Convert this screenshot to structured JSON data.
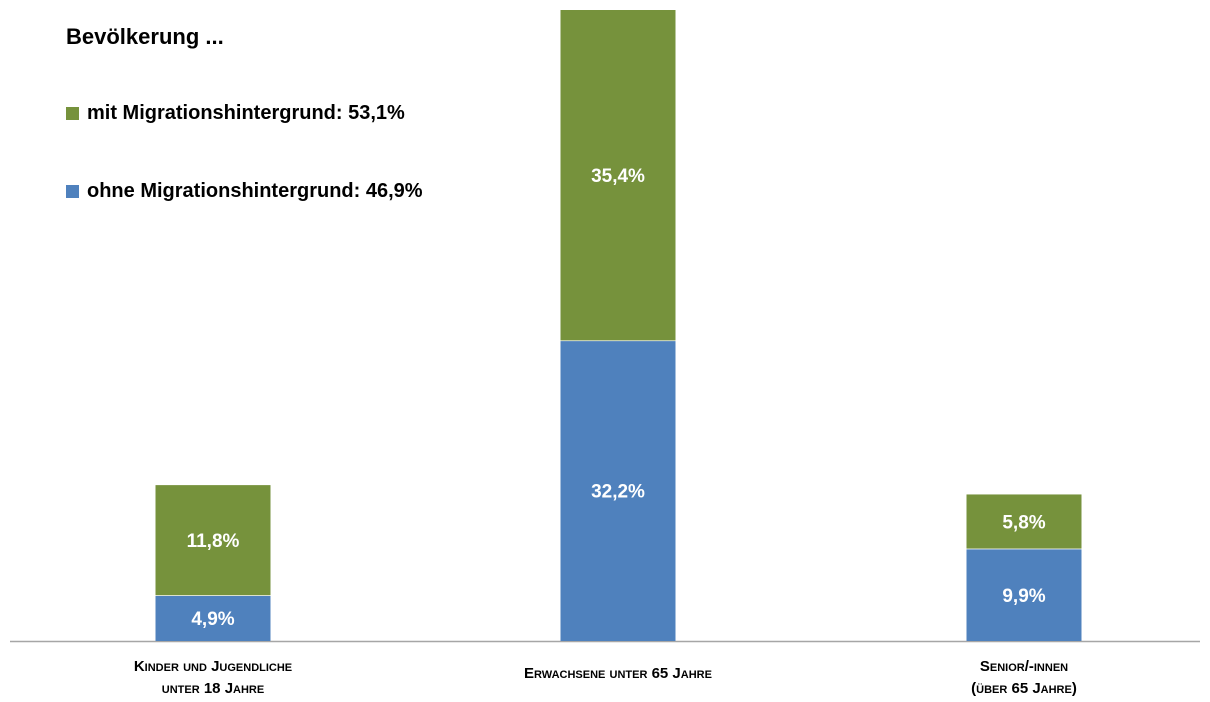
{
  "chart_data": {
    "type": "bar",
    "stacked": true,
    "title": "Bevölkerung ...",
    "categories": [
      "Kinder und Jugendliche\nunter 18 Jahre",
      "Erwachsene unter 65 Jahre",
      "Senior/-innen\n(über 65 Jahre)"
    ],
    "series": [
      {
        "name": "ohne Migrationshintergrund: 46,9%",
        "values": [
          4.9,
          32.2,
          9.9
        ],
        "labels": [
          "4,9%",
          "32,2%",
          "9,9%"
        ],
        "color": "#4F81BD"
      },
      {
        "name": "mit Migrationshintergrund: 53,1%",
        "values": [
          11.8,
          35.4,
          5.8
        ],
        "labels": [
          "11,8%",
          "35,4%",
          "5,8%"
        ],
        "color": "#76923C"
      }
    ],
    "ylim": [
      0,
      67.6
    ],
    "grid": false,
    "legend": "top-left",
    "xlabel": "",
    "ylabel": ""
  },
  "legend_order": [
    1,
    0
  ]
}
